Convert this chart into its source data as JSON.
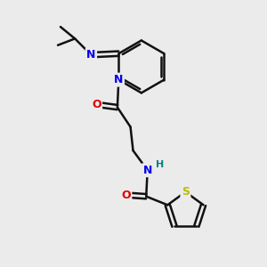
{
  "bg_color": "#ebebeb",
  "atom_colors": {
    "N": "#0000ee",
    "O": "#dd0000",
    "S": "#bbbb00",
    "C": "#111111",
    "H": "#008080"
  },
  "bond_color": "#111111",
  "bond_width": 1.8,
  "fig_size": [
    3.0,
    3.0
  ],
  "dpi": 100
}
